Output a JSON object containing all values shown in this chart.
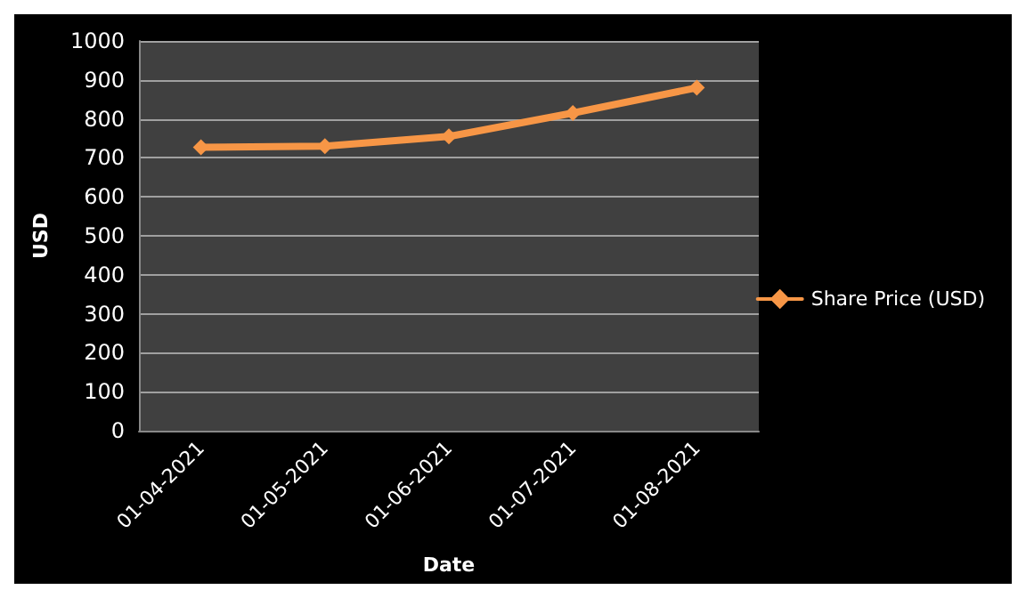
{
  "chart_data": {
    "type": "line",
    "xlabel": "Date",
    "ylabel": "USD",
    "categories": [
      "01-04-2021",
      "01-05-2021",
      "01-06-2021",
      "01-07-2021",
      "01-08-2021"
    ],
    "series": [
      {
        "name": "Share Price (USD)",
        "color": "#f79646",
        "values": [
          727,
          730,
          755,
          815,
          880
        ]
      }
    ],
    "ylim": [
      0,
      1000
    ],
    "yticks": [
      0,
      100,
      200,
      300,
      400,
      500,
      600,
      700,
      800,
      900,
      1000
    ],
    "grid": "y",
    "legend": "right",
    "marker": "diamond",
    "line_style": "solid"
  }
}
